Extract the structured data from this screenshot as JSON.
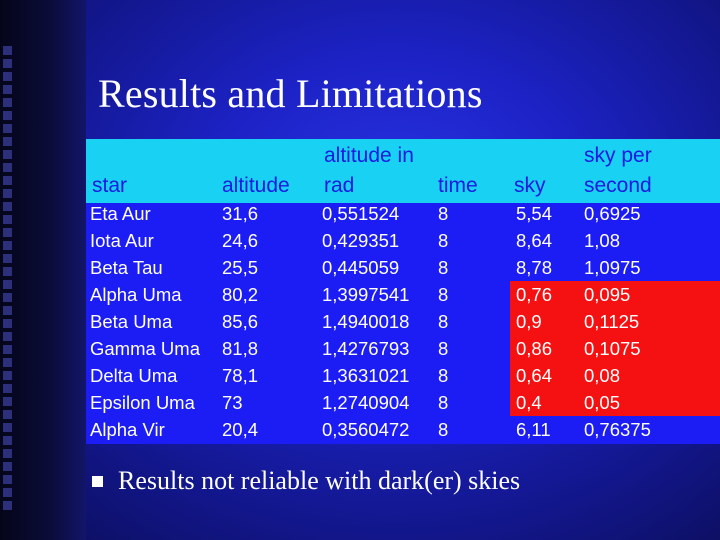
{
  "slide": {
    "title": "Results and Limitations",
    "bullet": "Results not reliable with dark(er) skies"
  },
  "table": {
    "headers": {
      "star": "star",
      "altitude": "altitude",
      "altrad_line1": "altitude in",
      "altrad_line2": "rad",
      "time": "time",
      "sky": "sky",
      "skypersec_line1": "sky per",
      "skypersec_line2": "second"
    },
    "rows": [
      [
        "Eta Aur",
        "31,6",
        "0,551524",
        "8",
        "5,54",
        "0,6925"
      ],
      [
        "Iota Aur",
        "24,6",
        "0,429351",
        "8",
        "8,64",
        "1,08"
      ],
      [
        "Beta Tau",
        "25,5",
        "0,445059",
        "8",
        "8,78",
        "1,0975"
      ],
      [
        "Alpha Uma",
        "80,2",
        "1,3997541",
        "8",
        "0,76",
        "0,095"
      ],
      [
        "Beta Uma",
        "85,6",
        "1,4940018",
        "8",
        "0,9",
        "0,1125"
      ],
      [
        "Gamma Uma",
        "81,8",
        "1,4276793",
        "8",
        "0,86",
        "0,1075"
      ],
      [
        "Delta Uma",
        "78,1",
        "1,3631021",
        "8",
        "0,64",
        "0,08"
      ],
      [
        "Epsilon Uma",
        "73",
        "1,2740904",
        "8",
        "0,4",
        "0,05"
      ],
      [
        "Alpha Vir",
        "20,4",
        "0,3560472",
        "8",
        "6,11",
        "0,76375"
      ]
    ]
  },
  "colors": {
    "header_band": "#19d1f3",
    "table_bg": "#1c1cf5",
    "highlight": "#f51111"
  }
}
